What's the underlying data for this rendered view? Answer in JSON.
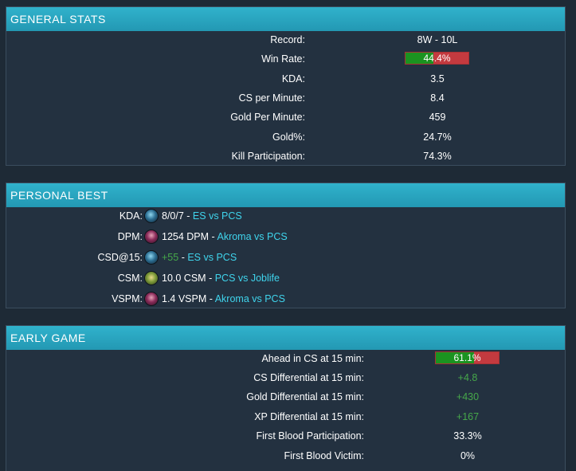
{
  "general": {
    "title": "GENERAL STATS",
    "rows": [
      {
        "label": "Record:",
        "value": "8W - 10L"
      },
      {
        "label": "Win Rate:",
        "value": "44.4%",
        "bar_fraction": 0.444
      },
      {
        "label": "KDA:",
        "value": "3.5"
      },
      {
        "label": "CS per Minute:",
        "value": "8.4"
      },
      {
        "label": "Gold Per Minute:",
        "value": "459"
      },
      {
        "label": "Gold%:",
        "value": "24.7%"
      },
      {
        "label": "Kill Participation:",
        "value": "74.3%"
      }
    ]
  },
  "personal": {
    "title": "PERSONAL BEST",
    "rows": [
      {
        "label": "KDA:",
        "icon": "champion-blue-icon",
        "value": "8/0/7",
        "match": "ES vs PCS"
      },
      {
        "label": "DPM:",
        "icon": "champion-purple-icon",
        "value": "1254 DPM",
        "match": "Akroma vs PCS"
      },
      {
        "label": "CSD@15:",
        "icon": "champion-blue-icon",
        "value": "+55",
        "match": "ES vs PCS"
      },
      {
        "label": "CSM:",
        "icon": "champion-green-icon",
        "value": "10.0 CSM",
        "match": "PCS vs Joblife"
      },
      {
        "label": "VSPM:",
        "icon": "champion-purple-icon",
        "value": "1.4 VSPM",
        "match": "Akroma vs PCS"
      }
    ],
    "separator": " - "
  },
  "early": {
    "title": "EARLY GAME",
    "rows": [
      {
        "label": "Ahead in CS at 15 min:",
        "value": "61.1%",
        "bar_fraction": 0.611
      },
      {
        "label": "CS Differential at 15 min:",
        "value": "+4.8"
      },
      {
        "label": "Gold Differential at 15 min:",
        "value": "+430"
      },
      {
        "label": "XP Differential at 15 min:",
        "value": "+167"
      },
      {
        "label": "First Blood Participation:",
        "value": "33.3%"
      },
      {
        "label": "First Blood Victim:",
        "value": "0%"
      }
    ]
  },
  "colors": {
    "header": "#2ba4bf",
    "panel": "#233140",
    "bar_win": "#1b9320",
    "bar_loss": "#c43a3f",
    "positive": "#46a84a",
    "link": "#3fd4ec"
  }
}
